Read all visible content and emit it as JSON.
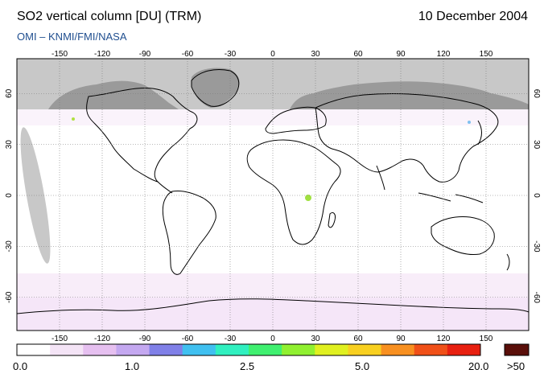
{
  "header": {
    "title": "SO2 vertical column [DU] (TRM)",
    "date": "10 December 2004",
    "source": "OMI  –  KNMI/FMI/NASA"
  },
  "axes": {
    "lon_ticks": [
      "-150",
      "-120",
      "-90",
      "-60",
      "-30",
      "0",
      "30",
      "60",
      "90",
      "120",
      "150"
    ],
    "lat_ticks": [
      "60",
      "30",
      "0",
      "-30",
      "-60"
    ]
  },
  "colorbar": {
    "labels": [
      "0.0",
      "1.0",
      "2.5",
      "5.0",
      "20.0"
    ],
    "overflow_label": ">50",
    "overflow_color": "#5a0f0a",
    "colors": [
      "#ffffff",
      "#f4e4f6",
      "#e6c0f0",
      "#c4a8f0",
      "#8080e8",
      "#40c0f0",
      "#30f0c0",
      "#40f070",
      "#90f030",
      "#e0f020",
      "#f8d020",
      "#f89020",
      "#f05018",
      "#e82010"
    ]
  },
  "map": {
    "no_data_color": "#c8c8c8",
    "land_no_data_color": "#9a9a9a"
  }
}
